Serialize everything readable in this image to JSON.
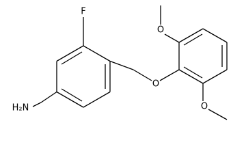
{
  "atoms": {
    "fluorine": "F",
    "ether_oxygen": "O",
    "methoxy_oxygen_top": "O",
    "methoxy_oxygen_bottom": "O",
    "amine": "H₂N"
  }
}
